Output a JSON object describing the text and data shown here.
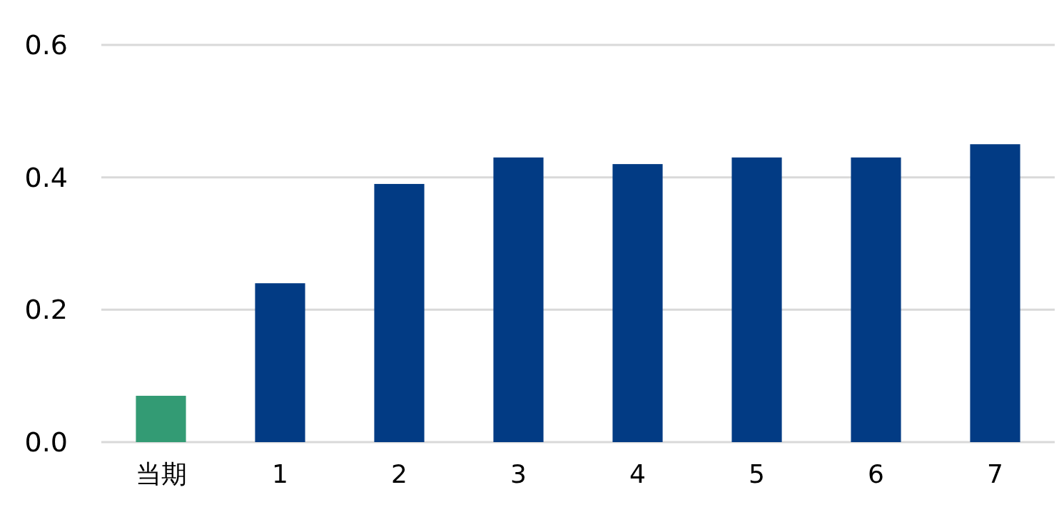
{
  "chart_data": {
    "type": "bar",
    "categories": [
      "当期",
      "1",
      "2",
      "3",
      "4",
      "5",
      "6",
      "7"
    ],
    "values": [
      0.07,
      0.24,
      0.39,
      0.43,
      0.42,
      0.43,
      0.43,
      0.45
    ],
    "colors": [
      "#339b74",
      "#023b84",
      "#023b84",
      "#023b84",
      "#023b84",
      "#023b84",
      "#023b84",
      "#023b84"
    ],
    "ylim": [
      0,
      0.6
    ],
    "yticks": [
      {
        "value": 0,
        "label": "0.0"
      },
      {
        "value": 0.2,
        "label": "0.2"
      },
      {
        "value": 0.4,
        "label": "0.4"
      },
      {
        "value": 0.6,
        "label": "0.6"
      }
    ],
    "grid": "y"
  }
}
